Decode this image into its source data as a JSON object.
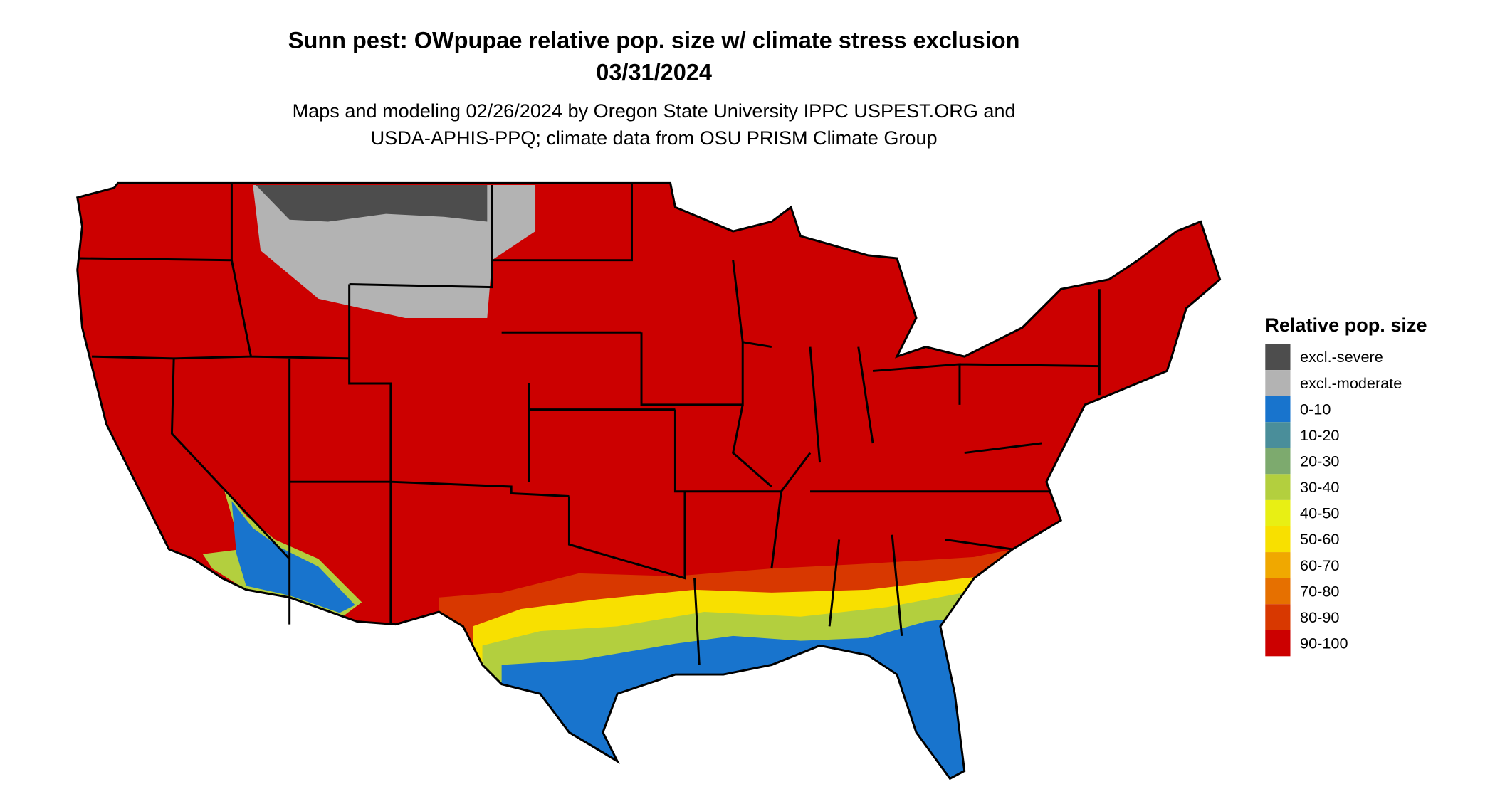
{
  "header": {
    "title": "Sunn pest: OWpupae relative pop. size w/ climate stress exclusion",
    "date": "03/31/2024",
    "subtitle": [
      "Maps and modeling 02/26/2024 by Oregon State University IPPC USPEST.ORG and",
      "USDA-APHIS-PPQ; climate data from OSU PRISM Climate Group"
    ]
  },
  "legend": {
    "title": "Relative pop. size",
    "items": [
      {
        "label": "excl.-severe",
        "color": "#4d4d4d"
      },
      {
        "label": "excl.-moderate",
        "color": "#b3b3b3"
      },
      {
        "label": "0-10",
        "color": "#1874cd"
      },
      {
        "label": "10-20",
        "color": "#4a8e9a"
      },
      {
        "label": "20-30",
        "color": "#7daa6e"
      },
      {
        "label": "30-40",
        "color": "#b3cf3e"
      },
      {
        "label": "40-50",
        "color": "#e8ef14"
      },
      {
        "label": "50-60",
        "color": "#f8e000"
      },
      {
        "label": "60-70",
        "color": "#f0a800"
      },
      {
        "label": "70-80",
        "color": "#e67000"
      },
      {
        "label": "80-90",
        "color": "#d83800"
      },
      {
        "label": "90-100",
        "color": "#cc0000"
      }
    ]
  }
}
